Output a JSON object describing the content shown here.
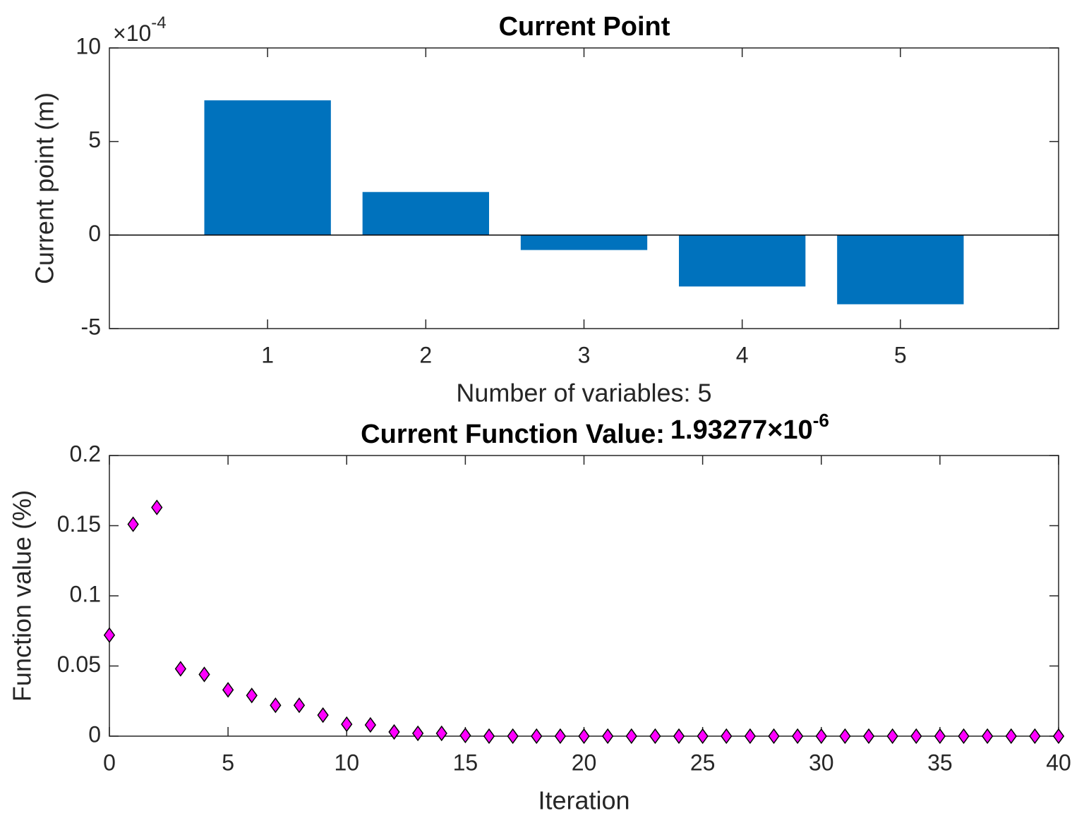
{
  "chart_data": [
    {
      "type": "bar",
      "title": "Current Point",
      "ylabel": "Current point (m)",
      "xlabel": "Number of variables: 5",
      "y_multiplier": {
        "base": "×10",
        "exponent": "-4"
      },
      "x": [
        1,
        2,
        3,
        4,
        5
      ],
      "values": [
        7.2,
        2.3,
        -0.8,
        -2.75,
        -3.7
      ],
      "color": "#0072bd",
      "bar_width": 0.8,
      "xlim": [
        0,
        6
      ],
      "xticks": [
        1,
        2,
        3,
        4,
        5
      ],
      "ylim": [
        -5,
        10
      ],
      "yticks": [
        -5,
        0,
        5,
        10
      ],
      "grid": false
    },
    {
      "type": "scatter",
      "title": "Current Function Value:",
      "title_value": {
        "base": "1.93277×10",
        "exponent": "-6"
      },
      "ylabel": "Function value (%)",
      "xlabel": "Iteration",
      "color": "#ff00ff",
      "edge_color": "#000000",
      "marker": "diamond",
      "x": [
        0,
        1,
        2,
        3,
        4,
        5,
        6,
        7,
        8,
        9,
        10,
        11,
        12,
        13,
        14,
        15,
        16,
        17,
        18,
        19,
        20,
        21,
        22,
        23,
        24,
        25,
        26,
        27,
        28,
        29,
        30,
        31,
        32,
        33,
        34,
        35,
        36,
        37,
        38,
        39,
        40
      ],
      "values": [
        0.072,
        0.151,
        0.163,
        0.048,
        0.044,
        0.033,
        0.029,
        0.022,
        0.022,
        0.015,
        0.0085,
        0.008,
        0.003,
        0.002,
        0.002,
        0.0005,
        0,
        0,
        0,
        0,
        0,
        0,
        0,
        0,
        0,
        0,
        0,
        0,
        0,
        0,
        0,
        0,
        0,
        0,
        0,
        0,
        0,
        0,
        0,
        0,
        0
      ],
      "xlim": [
        0,
        40
      ],
      "xticks": [
        0,
        5,
        10,
        15,
        20,
        25,
        30,
        35,
        40
      ],
      "ylim": [
        0,
        0.2
      ],
      "yticks": [
        0,
        0.05,
        0.1,
        0.15,
        0.2
      ],
      "grid": false
    }
  ]
}
